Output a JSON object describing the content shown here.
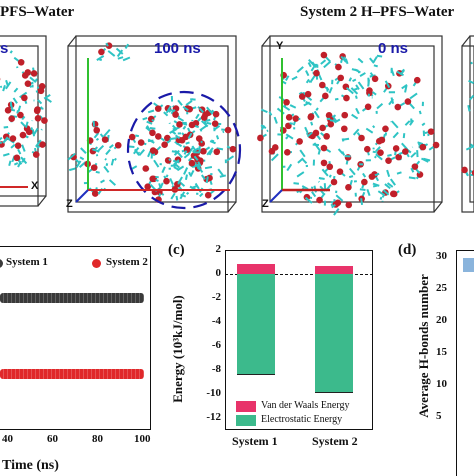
{
  "top": {
    "system1_title": "PFS–Water",
    "system2_title": "System 2   H–PFS–Water",
    "snap_left_time": "s",
    "snap_mid_time": "100 ns",
    "snap_right_time": "0 ns",
    "axis_x": "X",
    "axis_y": "Y",
    "axis_z": "Z",
    "colors": {
      "molecule": "#2ec4c4",
      "oxygen": "#c0202a",
      "box": "#333333",
      "cluster_ring": "#1a1aa8"
    }
  },
  "panel_b": {
    "legend": [
      {
        "name": "System 1",
        "color": "#3a3a3a"
      },
      {
        "name": "System 2",
        "color": "#e0282a"
      }
    ],
    "x_ticks": [
      "40",
      "60",
      "80",
      "100"
    ],
    "xlabel": "Time (ns)"
  },
  "panel_c": {
    "letter": "(c)",
    "ylabel": "Energy (10³kJ/mol)",
    "y_ticks": [
      "2",
      "0",
      "-2",
      "-4",
      "-6",
      "-8",
      "-10",
      "-12"
    ],
    "categories": [
      "System 1",
      "System 2"
    ],
    "legend": [
      {
        "name": "Van der Waals Energy",
        "color": "#e8336a"
      },
      {
        "name": "Electrostatic Energy",
        "color": "#3cba8c"
      }
    ]
  },
  "panel_d": {
    "letter": "(d)",
    "ylabel": "Average H-bonds number",
    "y_ticks": [
      "30",
      "25",
      "20",
      "15",
      "10",
      "5"
    ],
    "bar_color": "#8ab4dc"
  },
  "chart_data": [
    {
      "type": "scatter",
      "x_ticks": [
        40,
        60,
        80,
        100
      ],
      "xlim": [
        30,
        100
      ],
      "series": [
        {
          "name": "System 1",
          "y_level": 0.72
        },
        {
          "name": "System 2",
          "y_level": 0.3
        }
      ]
    },
    {
      "type": "bar",
      "categories": [
        "System 1",
        "System 2"
      ],
      "ylim": [
        -13,
        2
      ],
      "series": [
        {
          "name": "Van der Waals Energy",
          "values": [
            0.8,
            0.7
          ]
        },
        {
          "name": "Electrostatic Energy",
          "values": [
            -8.3,
            -9.8
          ]
        }
      ]
    }
  ]
}
